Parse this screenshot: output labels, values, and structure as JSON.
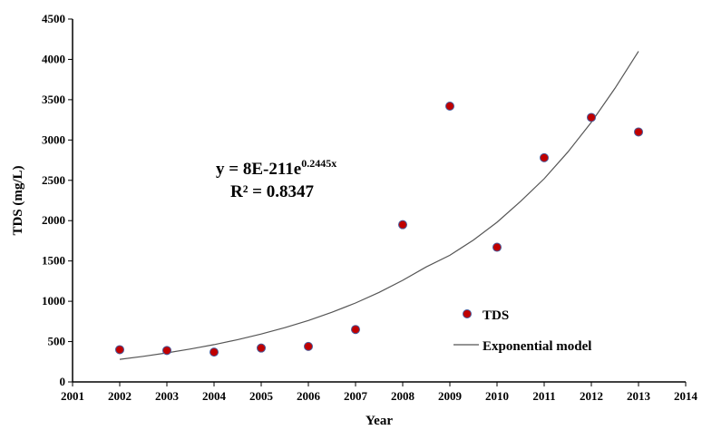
{
  "chart_data": {
    "type": "scatter",
    "xlabel": "Year",
    "ylabel": "TDS (mg/L)",
    "xlim": [
      2001,
      2014
    ],
    "ylim": [
      0,
      4500
    ],
    "xticks": [
      2001,
      2002,
      2003,
      2004,
      2005,
      2006,
      2007,
      2008,
      2009,
      2010,
      2011,
      2012,
      2013,
      2014
    ],
    "yticks": [
      0,
      500,
      1000,
      1500,
      2000,
      2500,
      3000,
      3500,
      4000,
      4500
    ],
    "grid": false,
    "legend_position": "bottom-right",
    "series": [
      {
        "name": "TDS",
        "kind": "scatter",
        "color": "#c00000",
        "x": [
          2002,
          2003,
          2004,
          2005,
          2006,
          2007,
          2008,
          2009,
          2010,
          2011,
          2012,
          2013
        ],
        "y": [
          400,
          390,
          370,
          420,
          440,
          650,
          1950,
          3420,
          1670,
          2780,
          3280,
          3100
        ]
      },
      {
        "name": "Exponential model",
        "kind": "line",
        "color": "#555555",
        "x": [
          2002,
          2002.5,
          2003,
          2003.5,
          2004,
          2004.5,
          2005,
          2005.5,
          2006,
          2006.5,
          2007,
          2007.5,
          2008,
          2008.5,
          2009,
          2009.5,
          2010,
          2010.5,
          2011,
          2011.5,
          2012,
          2012.5,
          2013
        ],
        "y": [
          280,
          317,
          360,
          408,
          462,
          524,
          594,
          673,
          762,
          864,
          979,
          1110,
          1260,
          1427,
          1570,
          1760,
          1980,
          2240,
          2520,
          2850,
          3220,
          3640,
          4100
        ]
      }
    ],
    "annotations": {
      "equation_base": "y = 8E-211e",
      "equation_exp": "0.2445x",
      "r_squared": "R² = 0.8347"
    }
  }
}
